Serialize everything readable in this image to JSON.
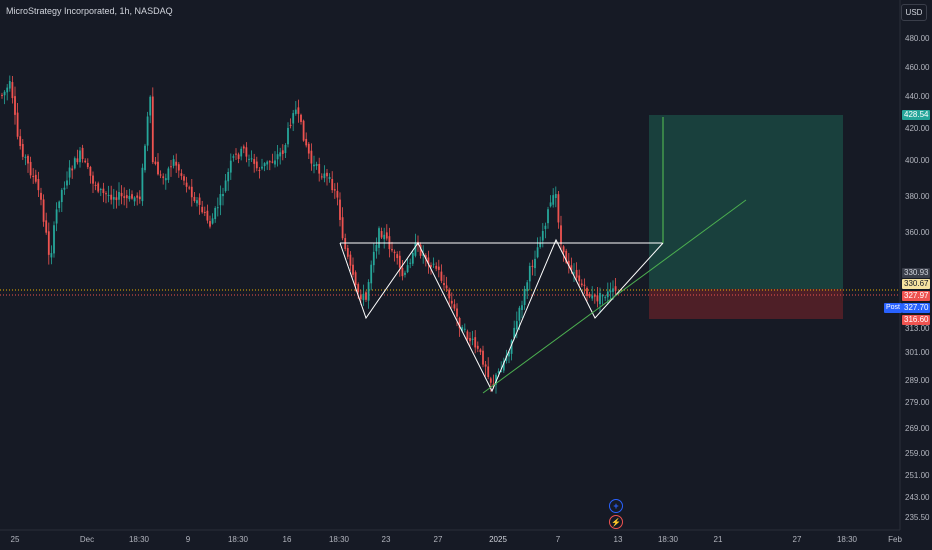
{
  "header": {
    "title": "MicroStrategy Incorporated, 1h, NASDAQ",
    "currency_button": "USD"
  },
  "price_axis": {
    "labels": [
      "480.00",
      "460.00",
      "440.00",
      "420.00",
      "400.00",
      "380.00",
      "360.00",
      "301.00",
      "289.00",
      "279.00",
      "269.00",
      "259.00",
      "251.00",
      "243.00",
      "235.50"
    ]
  },
  "price_tags": {
    "take_profit": "428.54",
    "target_level": "330.93",
    "last_price": "330.67",
    "entry": "327.97",
    "post_label": "Post",
    "post_price": "327.70",
    "stop_loss": "316.60",
    "axis_313": "313.00"
  },
  "time_axis": {
    "labels": [
      "25",
      "Dec",
      "18:30",
      "9",
      "18:30",
      "16",
      "18:30",
      "23",
      "27",
      "2025",
      "7",
      "13",
      "18:30",
      "21",
      "27",
      "18:30",
      "Feb"
    ]
  },
  "colors": {
    "background": "#161a25",
    "up_candle": "#26a69a",
    "down_candle": "#ef5350",
    "profit_zone": "#1b4d45",
    "loss_zone": "#5c2128",
    "pattern_lines": "#ffffff",
    "trend_line": "#4caf50"
  },
  "events": {
    "plus_icon": "+",
    "flash_icon": "⚡"
  }
}
